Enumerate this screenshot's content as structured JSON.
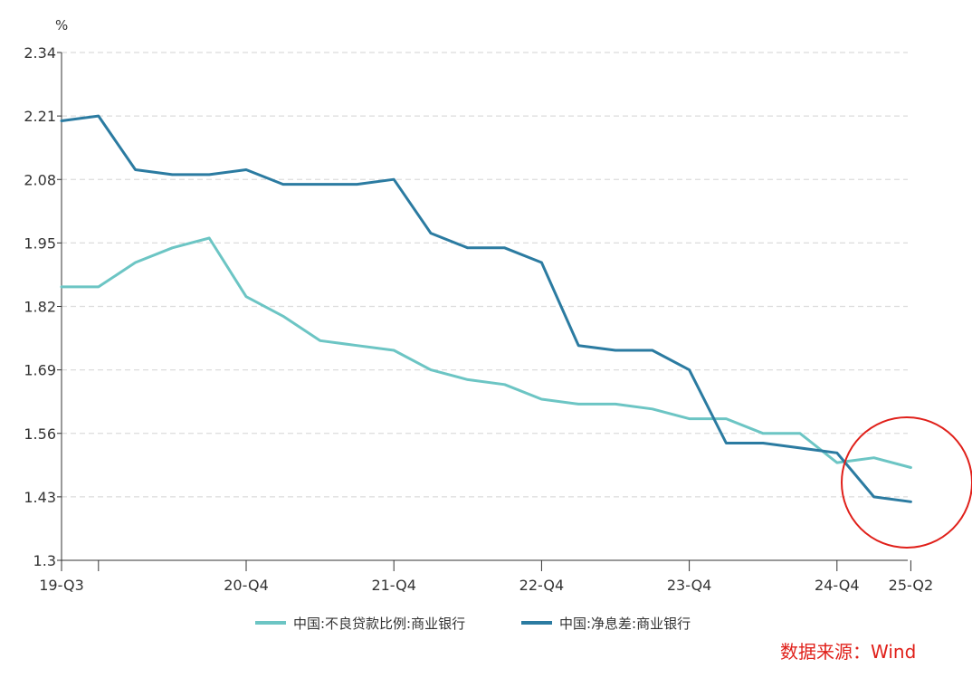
{
  "chart_data": {
    "type": "line",
    "unit": "%",
    "ylim": [
      1.3,
      2.34
    ],
    "yticks": [
      "1.3",
      "1.43",
      "1.56",
      "1.69",
      "1.82",
      "1.95",
      "2.08",
      "2.21",
      "2.34"
    ],
    "grid": true,
    "legend_position": "bottom-center",
    "x": [
      "19-Q3",
      "19-Q4",
      "20-Q1",
      "20-Q2",
      "20-Q3",
      "20-Q4",
      "21-Q1",
      "21-Q2",
      "21-Q3",
      "21-Q4",
      "22-Q1",
      "22-Q2",
      "22-Q3",
      "22-Q4",
      "23-Q1",
      "23-Q2",
      "23-Q3",
      "23-Q4",
      "24-Q1",
      "24-Q2",
      "24-Q3",
      "24-Q4",
      "25-Q1",
      "25-Q2"
    ],
    "xtick_labels": [
      {
        "label": "19-Q3",
        "index": 0
      },
      {
        "label": "20-Q4",
        "index": 5
      },
      {
        "label": "21-Q4",
        "index": 9
      },
      {
        "label": "22-Q4",
        "index": 13
      },
      {
        "label": "23-Q4",
        "index": 17
      },
      {
        "label": "24-Q4",
        "index": 21
      },
      {
        "label": "25-Q2",
        "index": 23
      }
    ],
    "series": [
      {
        "name": "中国:不良贷款比例:商业银行",
        "color": "#6cc5c4",
        "values": [
          1.86,
          1.86,
          1.91,
          1.94,
          1.96,
          1.84,
          1.8,
          1.75,
          1.74,
          1.73,
          1.69,
          1.67,
          1.66,
          1.63,
          1.62,
          1.62,
          1.61,
          1.59,
          1.59,
          1.56,
          1.56,
          1.5,
          1.51,
          1.49
        ]
      },
      {
        "name": "中国:净息差:商业银行",
        "color": "#2b7ba1",
        "values": [
          2.2,
          2.21,
          2.1,
          2.09,
          2.09,
          2.1,
          2.07,
          2.07,
          2.07,
          2.08,
          1.97,
          1.94,
          1.94,
          1.91,
          1.74,
          1.73,
          1.73,
          1.69,
          1.54,
          1.54,
          1.53,
          1.52,
          1.43,
          1.42
        ]
      }
    ],
    "annotation_color": "#e0201a"
  },
  "source_text": "数据来源：Wind"
}
